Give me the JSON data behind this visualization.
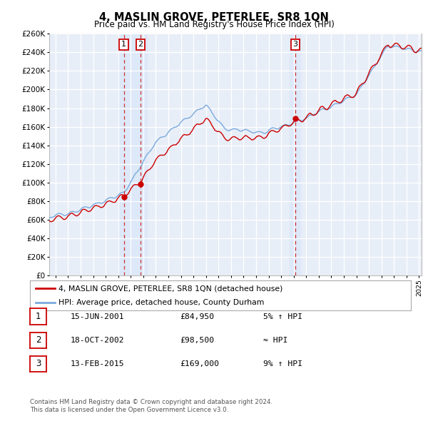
{
  "title": "4, MASLIN GROVE, PETERLEE, SR8 1QN",
  "subtitle": "Price paid vs. HM Land Registry's House Price Index (HPI)",
  "ylim": [
    0,
    260000
  ],
  "yticks": [
    0,
    20000,
    40000,
    60000,
    80000,
    100000,
    120000,
    140000,
    160000,
    180000,
    200000,
    220000,
    240000,
    260000
  ],
  "background_color": "#ffffff",
  "plot_bg_color": "#e8eef8",
  "grid_color": "#ffffff",
  "line_color_red": "#cc0000",
  "line_color_blue": "#7aaadd",
  "vline_color": "#cc3333",
  "vband_color": "#dde8f8",
  "transactions": [
    {
      "label": "1",
      "date_num": 2001.46,
      "price": 84950
    },
    {
      "label": "2",
      "date_num": 2002.79,
      "price": 98500
    },
    {
      "label": "3",
      "date_num": 2015.12,
      "price": 169000
    }
  ],
  "legend_entries": [
    "4, MASLIN GROVE, PETERLEE, SR8 1QN (detached house)",
    "HPI: Average price, detached house, County Durham"
  ],
  "table_rows": [
    {
      "num": "1",
      "date": "15-JUN-2001",
      "price": "£84,950",
      "rel": "5% ↑ HPI"
    },
    {
      "num": "2",
      "date": "18-OCT-2002",
      "price": "£98,500",
      "rel": "≈ HPI"
    },
    {
      "num": "3",
      "date": "13-FEB-2015",
      "price": "£169,000",
      "rel": "9% ↑ HPI"
    }
  ],
  "footer": "Contains HM Land Registry data © Crown copyright and database right 2024.\nThis data is licensed under the Open Government Licence v3.0.",
  "xmin": 1995.5,
  "xmax": 2025.2
}
